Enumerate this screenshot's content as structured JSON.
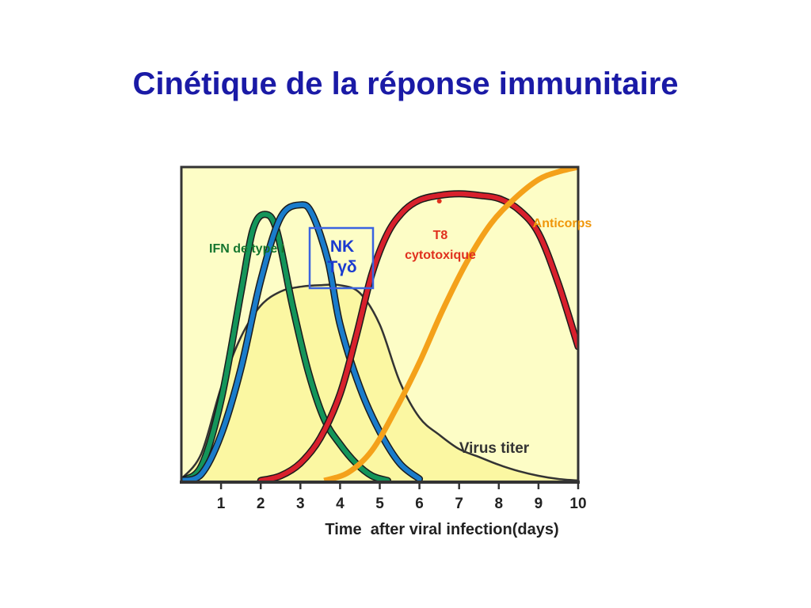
{
  "title": "Cinétique de la réponse immunitaire",
  "chart_data": {
    "type": "line",
    "title": "Cinétique de la réponse immunitaire",
    "xlabel": "Time  after viral infection(days)",
    "ylabel": "",
    "xlim": [
      0,
      10
    ],
    "ylim": [
      0,
      10
    ],
    "x_ticks": [
      1,
      2,
      3,
      4,
      5,
      6,
      7,
      8,
      9,
      10
    ],
    "grid": false,
    "background_color": "#fdfdc6",
    "series": [
      {
        "name": "Virus titer",
        "color": "#333333",
        "fill": "#fbf7a2",
        "points": [
          [
            0,
            0.1
          ],
          [
            0.5,
            0.9
          ],
          [
            1,
            3.0
          ],
          [
            1.5,
            4.6
          ],
          [
            2,
            5.6
          ],
          [
            2.5,
            6.05
          ],
          [
            3,
            6.2
          ],
          [
            3.5,
            6.25
          ],
          [
            4,
            6.25
          ],
          [
            4.5,
            6.0
          ],
          [
            5,
            5.0
          ],
          [
            5.5,
            3.2
          ],
          [
            6,
            2.05
          ],
          [
            6.5,
            1.5
          ],
          [
            7,
            1.05
          ],
          [
            7.5,
            0.8
          ],
          [
            8,
            0.55
          ],
          [
            8.5,
            0.35
          ],
          [
            9,
            0.2
          ],
          [
            9.5,
            0.1
          ],
          [
            10,
            0.05
          ]
        ]
      },
      {
        "name": "IFN de type I",
        "color": "#14955a",
        "points": [
          [
            0,
            0.05
          ],
          [
            0.5,
            0.5
          ],
          [
            1,
            2.6
          ],
          [
            1.5,
            6.0
          ],
          [
            1.8,
            8.0
          ],
          [
            2.1,
            8.5
          ],
          [
            2.4,
            8.0
          ],
          [
            2.8,
            5.6
          ],
          [
            3.2,
            3.5
          ],
          [
            3.6,
            2.0
          ],
          [
            4,
            1.2
          ],
          [
            4.4,
            0.6
          ],
          [
            4.8,
            0.2
          ],
          [
            5.2,
            0.05
          ]
        ]
      },
      {
        "name": "NK Tγδ",
        "color": "#1a7ccb",
        "points": [
          [
            0,
            0.05
          ],
          [
            0.5,
            0.25
          ],
          [
            1,
            1.5
          ],
          [
            1.5,
            3.6
          ],
          [
            2,
            6.4
          ],
          [
            2.5,
            8.4
          ],
          [
            3,
            8.8
          ],
          [
            3.3,
            8.5
          ],
          [
            3.7,
            7.0
          ],
          [
            4,
            5.0
          ],
          [
            4.5,
            3.0
          ],
          [
            5,
            1.6
          ],
          [
            5.5,
            0.6
          ],
          [
            6,
            0.1
          ]
        ]
      },
      {
        "name": "T8 cytotoxique",
        "color": "#d8202c",
        "points": [
          [
            2,
            0.05
          ],
          [
            2.5,
            0.2
          ],
          [
            3,
            0.6
          ],
          [
            3.5,
            1.4
          ],
          [
            4,
            2.8
          ],
          [
            4.4,
            4.6
          ],
          [
            4.8,
            6.6
          ],
          [
            5.2,
            7.9
          ],
          [
            5.6,
            8.6
          ],
          [
            6,
            8.95
          ],
          [
            6.5,
            9.1
          ],
          [
            7,
            9.15
          ],
          [
            7.5,
            9.1
          ],
          [
            8,
            9.0
          ],
          [
            8.5,
            8.65
          ],
          [
            9,
            7.9
          ],
          [
            9.5,
            6.3
          ],
          [
            10,
            4.3
          ]
        ]
      },
      {
        "name": "Anticorps",
        "color": "#f4a11a",
        "points": [
          [
            3.6,
            0.05
          ],
          [
            4.2,
            0.3
          ],
          [
            4.8,
            1.0
          ],
          [
            5.4,
            2.3
          ],
          [
            6,
            3.8
          ],
          [
            6.6,
            5.5
          ],
          [
            7.2,
            7.0
          ],
          [
            7.8,
            8.2
          ],
          [
            8.4,
            9.0
          ],
          [
            9,
            9.6
          ],
          [
            9.5,
            9.85
          ],
          [
            10,
            10.0
          ]
        ]
      }
    ],
    "annotations": {
      "ifn": "IFN de type I",
      "nk_line1": "NK",
      "nk_line2": "Tγδ",
      "t8_line1": "T8",
      "t8_line2": "cytotoxique",
      "anticorps": "Anticorps",
      "virus": "Virus titer"
    },
    "annotation_colors": {
      "ifn": "#14752e",
      "nk": "#1a3ad0",
      "nk_box": "#3a63e0",
      "t8": "#e0301e",
      "anticorps": "#f0960a",
      "virus": "#333333"
    }
  }
}
